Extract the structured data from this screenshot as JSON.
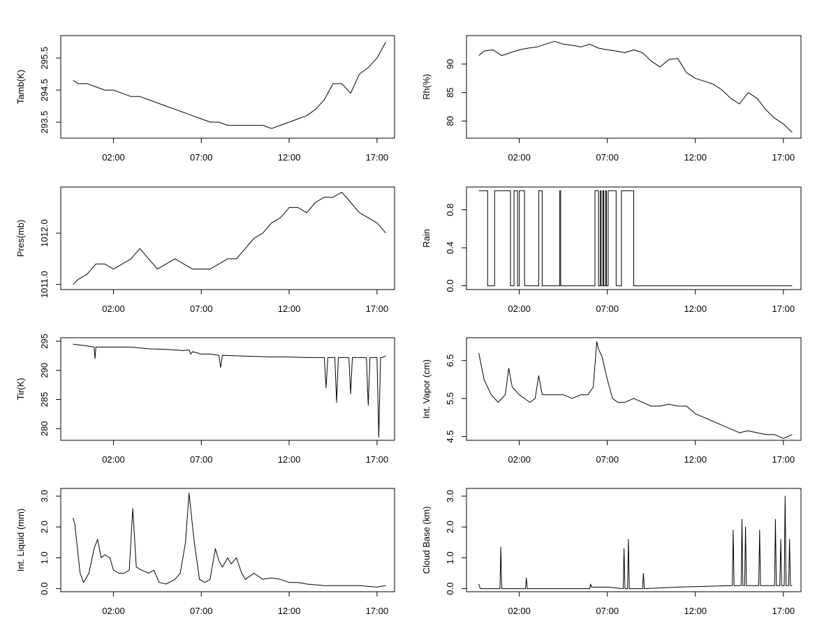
{
  "chart_data": [
    {
      "type": "line",
      "ylabel": "Tamb(K)",
      "xlim": [
        -1.0,
        18.0
      ],
      "ylim": [
        293.0,
        296.2
      ],
      "x_ticks": [
        {
          "value": 2,
          "label": "02:00"
        },
        {
          "value": 7,
          "label": "07:00"
        },
        {
          "value": 12,
          "label": "12:00"
        },
        {
          "value": 17,
          "label": "17:00"
        }
      ],
      "y_ticks": [
        {
          "value": 293.5,
          "label": "293.5"
        },
        {
          "value": 294.5,
          "label": "294.5"
        },
        {
          "value": 295.5,
          "label": "295.5"
        }
      ],
      "series": [
        {
          "x": [
            -0.3,
            0,
            0.5,
            1,
            1.5,
            2,
            2.5,
            3,
            3.5,
            4,
            4.5,
            5,
            5.5,
            6,
            6.5,
            7,
            7.5,
            8,
            8.5,
            9,
            9.5,
            10,
            10.5,
            11,
            11.5,
            12,
            12.5,
            13,
            13.5,
            14,
            14.5,
            15,
            15.5,
            16,
            16.5,
            17,
            17.5
          ],
          "y": [
            294.8,
            294.7,
            294.7,
            294.6,
            294.5,
            294.5,
            294.4,
            294.3,
            294.3,
            294.2,
            294.1,
            294.0,
            293.9,
            293.8,
            293.7,
            293.6,
            293.5,
            293.5,
            293.4,
            293.4,
            293.4,
            293.4,
            293.4,
            293.3,
            293.4,
            293.5,
            293.6,
            293.7,
            293.9,
            294.2,
            294.7,
            294.7,
            294.4,
            295.0,
            295.2,
            295.5,
            296.0
          ]
        }
      ]
    },
    {
      "type": "line",
      "ylabel": "Rh(%)",
      "xlim": [
        -1.0,
        18.0
      ],
      "ylim": [
        77.0,
        95.0
      ],
      "x_ticks": [
        {
          "value": 2,
          "label": "02:00"
        },
        {
          "value": 7,
          "label": "07:00"
        },
        {
          "value": 12,
          "label": "12:00"
        },
        {
          "value": 17,
          "label": "17:00"
        }
      ],
      "y_ticks": [
        {
          "value": 80,
          "label": "80"
        },
        {
          "value": 85,
          "label": "85"
        },
        {
          "value": 90,
          "label": "90"
        }
      ],
      "series": [
        {
          "x": [
            -0.3,
            0,
            0.5,
            1,
            1.5,
            2,
            2.5,
            3,
            3.5,
            4,
            4.5,
            5,
            5.5,
            6,
            6.5,
            7,
            7.5,
            8,
            8.5,
            9,
            9.5,
            10,
            10.5,
            11,
            11.5,
            12,
            12.5,
            13,
            13.5,
            14,
            14.5,
            15,
            15.5,
            16,
            16.5,
            17,
            17.5
          ],
          "y": [
            91.5,
            92.3,
            92.5,
            91.5,
            92.0,
            92.5,
            92.8,
            93.0,
            93.5,
            94.0,
            93.5,
            93.3,
            93.0,
            93.5,
            92.8,
            92.5,
            92.3,
            92.0,
            92.5,
            92.0,
            90.5,
            89.5,
            90.8,
            91.0,
            88.5,
            87.5,
            87.0,
            86.5,
            85.5,
            84.0,
            83.0,
            85.0,
            84.0,
            82.0,
            80.5,
            79.5,
            78.0
          ]
        }
      ]
    },
    {
      "type": "line",
      "ylabel": "Pres(mb)",
      "xlim": [
        -1.0,
        18.0
      ],
      "ylim": [
        1010.9,
        1012.9
      ],
      "x_ticks": [
        {
          "value": 2,
          "label": "02:00"
        },
        {
          "value": 7,
          "label": "07:00"
        },
        {
          "value": 12,
          "label": "12:00"
        },
        {
          "value": 17,
          "label": "17:00"
        }
      ],
      "y_ticks": [
        {
          "value": 1011.0,
          "label": "1011.0"
        },
        {
          "value": 1012.0,
          "label": "1012.0"
        }
      ],
      "series": [
        {
          "x": [
            -0.3,
            0,
            0.5,
            1,
            1.5,
            2,
            2.5,
            3,
            3.5,
            4,
            4.5,
            5,
            5.5,
            6,
            6.5,
            7,
            7.5,
            8,
            8.5,
            9,
            9.5,
            10,
            10.5,
            11,
            11.5,
            12,
            12.5,
            13,
            13.5,
            14,
            14.5,
            15,
            15.5,
            16,
            16.5,
            17,
            17.5
          ],
          "y": [
            1011.0,
            1011.1,
            1011.2,
            1011.4,
            1011.4,
            1011.3,
            1011.4,
            1011.5,
            1011.7,
            1011.5,
            1011.3,
            1011.4,
            1011.5,
            1011.4,
            1011.3,
            1011.3,
            1011.3,
            1011.4,
            1011.5,
            1011.5,
            1011.7,
            1011.9,
            1012.0,
            1012.2,
            1012.3,
            1012.5,
            1012.5,
            1012.4,
            1012.6,
            1012.7,
            1012.7,
            1012.8,
            1012.6,
            1012.4,
            1012.3,
            1012.2,
            1012.0
          ]
        }
      ]
    },
    {
      "type": "line",
      "ylabel": "Rain",
      "xlim": [
        -1.0,
        18.0
      ],
      "ylim": [
        -0.04,
        1.04
      ],
      "x_ticks": [
        {
          "value": 2,
          "label": "02:00"
        },
        {
          "value": 7,
          "label": "07:00"
        },
        {
          "value": 12,
          "label": "12:00"
        },
        {
          "value": 17,
          "label": "17:00"
        }
      ],
      "y_ticks": [
        {
          "value": 0.0,
          "label": "0.0"
        },
        {
          "value": 0.4,
          "label": "0.4"
        },
        {
          "value": 0.8,
          "label": "0.8"
        }
      ],
      "series": [
        {
          "x": [
            -0.3,
            0.2,
            0.2,
            0.6,
            0.6,
            0.9,
            0.9,
            1.5,
            1.5,
            1.7,
            1.7,
            1.9,
            1.9,
            2.0,
            2.0,
            2.3,
            2.3,
            3.1,
            3.1,
            3.3,
            3.3,
            4.3,
            4.3,
            4.35,
            4.35,
            6.3,
            6.3,
            6.5,
            6.5,
            6.6,
            6.6,
            6.65,
            6.65,
            6.75,
            6.75,
            6.8,
            6.8,
            6.9,
            6.9,
            6.95,
            6.95,
            7.05,
            7.05,
            7.5,
            7.5,
            7.8,
            7.8,
            8.5,
            8.5,
            8.8,
            8.8,
            17.5
          ],
          "y": [
            1,
            1,
            0,
            0,
            1,
            1,
            1,
            1,
            0,
            0,
            1,
            1,
            0,
            0,
            1,
            1,
            0,
            0,
            1,
            1,
            0,
            0,
            1,
            1,
            0,
            0,
            1,
            1,
            0,
            0,
            1,
            1,
            0,
            0,
            1,
            1,
            0,
            0,
            1,
            1,
            0,
            0,
            1,
            1,
            0,
            0,
            1,
            1,
            0,
            0,
            0,
            0
          ]
        }
      ]
    },
    {
      "type": "line",
      "ylabel": "Tir(K)",
      "xlim": [
        -1.0,
        18.0
      ],
      "ylim": [
        278.0,
        295.6
      ],
      "x_ticks": [
        {
          "value": 2,
          "label": "02:00"
        },
        {
          "value": 7,
          "label": "07:00"
        },
        {
          "value": 12,
          "label": "12:00"
        },
        {
          "value": 17,
          "label": "17:00"
        }
      ],
      "y_ticks": [
        {
          "value": 280,
          "label": "280"
        },
        {
          "value": 285,
          "label": "285"
        },
        {
          "value": 290,
          "label": "290"
        },
        {
          "value": 295,
          "label": "295"
        }
      ],
      "series": [
        {
          "x": [
            -0.3,
            0.5,
            0.9,
            0.95,
            1.0,
            2.0,
            3.0,
            4.0,
            5.0,
            6.0,
            6.3,
            6.4,
            6.5,
            7.0,
            7.5,
            8.0,
            8.1,
            8.2,
            9.0,
            10.0,
            11.0,
            12.0,
            13.0,
            14.0,
            14.1,
            14.2,
            14.3,
            14.6,
            14.7,
            14.8,
            15.0,
            15.4,
            15.5,
            15.6,
            15.8,
            16.0,
            16.4,
            16.5,
            16.6,
            16.8,
            17.0,
            17.1,
            17.2,
            17.3,
            17.5
          ],
          "y": [
            294.5,
            294.2,
            294.0,
            292.0,
            294.0,
            294.0,
            294.0,
            293.7,
            293.6,
            293.4,
            293.5,
            292.8,
            293.2,
            292.8,
            292.8,
            292.6,
            290.5,
            292.6,
            292.5,
            292.4,
            292.3,
            292.3,
            292.2,
            292.2,
            287.0,
            292.2,
            292.2,
            292.2,
            284.5,
            292.2,
            292.2,
            292.2,
            286.0,
            292.2,
            292.2,
            292.2,
            292.2,
            284.0,
            292.2,
            292.2,
            292.2,
            278.5,
            292.2,
            292.2,
            292.5
          ]
        }
      ]
    },
    {
      "type": "line",
      "ylabel": "Int. Vapor (cm)",
      "xlim": [
        -1.0,
        18.0
      ],
      "ylim": [
        4.4,
        7.1
      ],
      "x_ticks": [
        {
          "value": 2,
          "label": "02:00"
        },
        {
          "value": 7,
          "label": "07:00"
        },
        {
          "value": 12,
          "label": "12:00"
        },
        {
          "value": 17,
          "label": "17:00"
        }
      ],
      "y_ticks": [
        {
          "value": 4.5,
          "label": "4.5"
        },
        {
          "value": 5.5,
          "label": "5.5"
        },
        {
          "value": 6.5,
          "label": "6.5"
        }
      ],
      "series": [
        {
          "x": [
            -0.3,
            0,
            0.4,
            0.8,
            1.2,
            1.4,
            1.6,
            1.8,
            2.0,
            2.3,
            2.6,
            2.9,
            3.1,
            3.3,
            3.6,
            4.0,
            4.5,
            5.0,
            5.5,
            5.9,
            6.2,
            6.4,
            6.5,
            6.7,
            7.0,
            7.3,
            7.6,
            8.0,
            8.5,
            9.0,
            9.5,
            10.0,
            10.5,
            11.0,
            11.5,
            12.0,
            12.5,
            13.0,
            13.5,
            14.0,
            14.5,
            15.0,
            15.5,
            16.0,
            16.5,
            17.0,
            17.5
          ],
          "y": [
            6.7,
            6.0,
            5.6,
            5.4,
            5.6,
            6.3,
            5.8,
            5.7,
            5.6,
            5.5,
            5.4,
            5.5,
            6.1,
            5.6,
            5.6,
            5.6,
            5.6,
            5.5,
            5.6,
            5.6,
            5.8,
            7.0,
            6.8,
            6.6,
            6.0,
            5.5,
            5.4,
            5.4,
            5.5,
            5.4,
            5.3,
            5.3,
            5.35,
            5.3,
            5.3,
            5.1,
            5.0,
            4.9,
            4.8,
            4.7,
            4.6,
            4.65,
            4.6,
            4.55,
            4.55,
            4.45,
            4.55
          ]
        }
      ]
    },
    {
      "type": "line",
      "ylabel": "Int. Liquid (mm)",
      "xlim": [
        -1.0,
        18.0
      ],
      "ylim": [
        -0.1,
        3.25
      ],
      "x_ticks": [
        {
          "value": 2,
          "label": "02:00"
        },
        {
          "value": 7,
          "label": "07:00"
        },
        {
          "value": 12,
          "label": "12:00"
        },
        {
          "value": 17,
          "label": "17:00"
        }
      ],
      "y_ticks": [
        {
          "value": 0.0,
          "label": "0.0"
        },
        {
          "value": 1.0,
          "label": "1.0"
        },
        {
          "value": 2.0,
          "label": "2.0"
        },
        {
          "value": 3.0,
          "label": "3.0"
        }
      ],
      "series": [
        {
          "x": [
            -0.3,
            -0.2,
            0.1,
            0.3,
            0.6,
            0.9,
            1.1,
            1.3,
            1.5,
            1.8,
            2.0,
            2.3,
            2.6,
            2.9,
            3.1,
            3.3,
            3.6,
            4.0,
            4.3,
            4.6,
            5.0,
            5.5,
            5.8,
            6.1,
            6.3,
            6.6,
            6.9,
            7.2,
            7.5,
            7.8,
            8.0,
            8.2,
            8.5,
            8.7,
            9.0,
            9.3,
            9.5,
            10.0,
            10.5,
            11.0,
            11.5,
            12.0,
            12.5,
            13.0,
            14.0,
            15.0,
            16.0,
            17.0,
            17.5
          ],
          "y": [
            2.3,
            2.1,
            0.5,
            0.2,
            0.5,
            1.3,
            1.6,
            1.0,
            1.1,
            1.0,
            0.6,
            0.5,
            0.5,
            0.6,
            2.6,
            0.7,
            0.6,
            0.5,
            0.6,
            0.2,
            0.15,
            0.3,
            0.5,
            1.5,
            3.1,
            1.5,
            0.3,
            0.2,
            0.3,
            1.3,
            0.9,
            0.7,
            1.0,
            0.8,
            1.0,
            0.5,
            0.3,
            0.5,
            0.3,
            0.35,
            0.3,
            0.2,
            0.2,
            0.15,
            0.1,
            0.1,
            0.1,
            0.05,
            0.1
          ]
        }
      ]
    },
    {
      "type": "line",
      "ylabel": "Cloud Base (km)",
      "xlim": [
        -1.0,
        18.0
      ],
      "ylim": [
        -0.1,
        3.25
      ],
      "x_ticks": [
        {
          "value": 2,
          "label": "02:00"
        },
        {
          "value": 7,
          "label": "07:00"
        },
        {
          "value": 12,
          "label": "12:00"
        },
        {
          "value": 17,
          "label": "17:00"
        }
      ],
      "y_ticks": [
        {
          "value": 0.0,
          "label": "0.0"
        },
        {
          "value": 1.0,
          "label": "1.0"
        },
        {
          "value": 2.0,
          "label": "2.0"
        },
        {
          "value": 3.0,
          "label": "3.0"
        }
      ],
      "series": [
        {
          "x": [
            -0.3,
            -0.25,
            -0.2,
            0.9,
            0.95,
            1.0,
            2.35,
            2.4,
            2.45,
            6.0,
            6.05,
            6.1,
            7.0,
            7.9,
            7.95,
            8.0,
            8.15,
            8.2,
            8.25,
            9.0,
            9.05,
            9.1,
            11.0,
            13.0,
            14.1,
            14.15,
            14.2,
            14.6,
            14.65,
            14.7,
            14.8,
            14.85,
            14.9,
            15.6,
            15.65,
            15.7,
            16.5,
            16.55,
            16.6,
            16.8,
            16.85,
            16.9,
            17.05,
            17.1,
            17.15,
            17.3,
            17.35,
            17.4,
            17.5
          ],
          "y": [
            0.15,
            0.05,
            0.0,
            0.0,
            1.35,
            0.0,
            0.0,
            0.35,
            0.0,
            0.0,
            0.15,
            0.05,
            0.05,
            0.0,
            1.3,
            0.0,
            0.0,
            1.6,
            0.0,
            0.0,
            0.5,
            0.0,
            0.05,
            0.08,
            0.1,
            1.9,
            0.1,
            0.1,
            2.25,
            0.1,
            0.1,
            2.0,
            0.1,
            0.1,
            1.9,
            0.1,
            0.1,
            2.25,
            0.1,
            0.1,
            1.6,
            0.1,
            0.1,
            3.0,
            0.1,
            0.1,
            1.6,
            0.1,
            0.1
          ]
        }
      ]
    }
  ]
}
